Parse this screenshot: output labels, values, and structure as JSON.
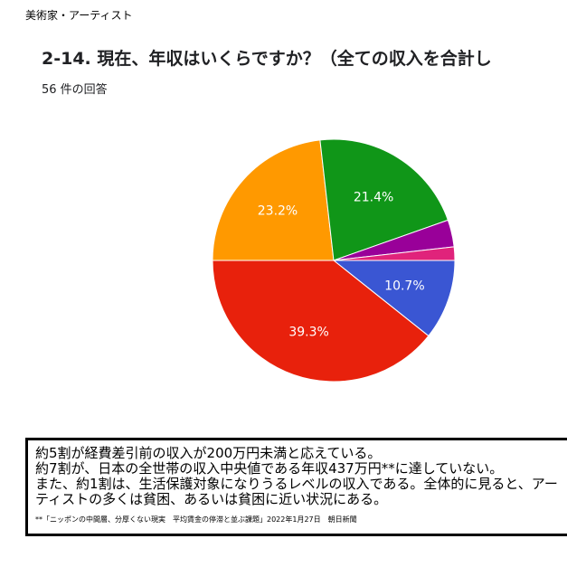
{
  "header": {
    "category": "美術家・アーティスト",
    "question": "2-14. 現在、年収はいくらですか？（全ての収入を合計し",
    "responses": "56 件の回答"
  },
  "chart_data": {
    "type": "pie",
    "title": "",
    "slices": [
      {
        "value": 10.7,
        "color": "#3a56d3",
        "label": "10.7%"
      },
      {
        "value": 39.3,
        "color": "#e8210c",
        "label": "39.3%"
      },
      {
        "value": 23.2,
        "color": "#ff9900",
        "label": "23.2%"
      },
      {
        "value": 21.4,
        "color": "#109618",
        "label": "21.4%"
      },
      {
        "value": 3.6,
        "color": "#990099",
        "label": ""
      },
      {
        "value": 1.8,
        "color": "#e0237b",
        "label": ""
      }
    ]
  },
  "note": {
    "lines": [
      "約5割が経費差引前の収入が200万円未満と応えている。",
      "約7割が、日本の全世帯の収入中央値である年収437万円**に達していない。",
      "また、約1割は、生活保護対象になりうるレベルの収入である。全体的に見ると、アー",
      "ティストの多くは貧困、あるいは貧困に近い状況にある。"
    ],
    "source": "**「ニッポンの中間層、分厚くない現実　平均賃金の停滞と並ぶ課題」2022年1月27日　朝日新聞"
  }
}
